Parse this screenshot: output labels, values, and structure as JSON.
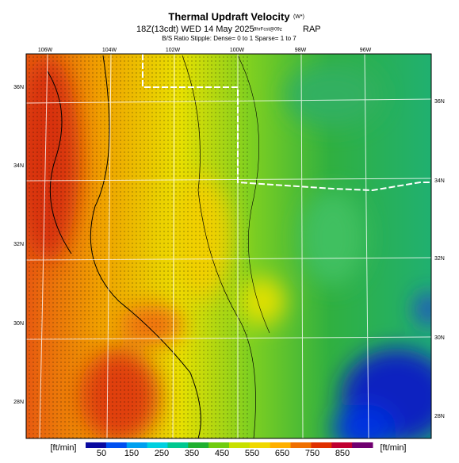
{
  "header": {
    "title": "Thermal Updraft Velocity",
    "title_unit": "(W*)",
    "line2_main": "18Z(13cdt) WED 14 May 2025",
    "line2_small": "9hrFcst@09z",
    "line2_model": "RAP",
    "line3": "B/S Ratio Stipple: Dense= 0 to 1 Sparse= 1 to 7"
  },
  "map": {
    "lon_labels": [
      "106W",
      "104W",
      "102W",
      "100W",
      "98W",
      "96W"
    ],
    "lat_labels_left": [
      "36N",
      "34N",
      "32N",
      "30N",
      "28N"
    ],
    "lat_labels_right": [
      "36N",
      "34N",
      "32N",
      "30N",
      "28N"
    ]
  },
  "colorbar": {
    "unit_left": "[ft/min]",
    "unit_right": "[ft/min]",
    "ticks": [
      50,
      150,
      250,
      350,
      450,
      550,
      650,
      750,
      850
    ],
    "colors": [
      "#0a0aa0",
      "#0050f0",
      "#00a0f0",
      "#00d0e0",
      "#00c890",
      "#20b030",
      "#70cc10",
      "#c8e000",
      "#f0d800",
      "#ffb000",
      "#f07000",
      "#e03000",
      "#c00030",
      "#700070"
    ]
  }
}
